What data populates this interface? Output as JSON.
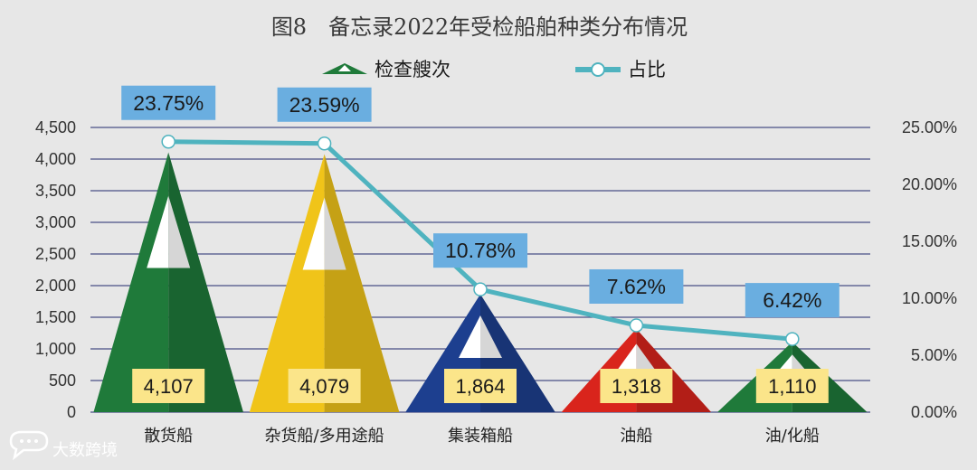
{
  "chart_data": {
    "type": "bar",
    "title": "图8　备忘录2022年受检船舶种类分布情况",
    "categories": [
      "散货船",
      "杂货船/多用途船",
      "集装箱船",
      "油船",
      "油/化船"
    ],
    "series": [
      {
        "name": "检查艘次",
        "axis": "left",
        "marker": "triangle",
        "values": [
          4107,
          4079,
          1864,
          1318,
          1110
        ],
        "labels": [
          "4,107",
          "4,079",
          "1,864",
          "1,318",
          "1,110"
        ]
      },
      {
        "name": "占比",
        "axis": "right",
        "type": "line",
        "values": [
          23.75,
          23.59,
          10.78,
          7.62,
          6.42
        ],
        "labels": [
          "23.75%",
          "23.59%",
          "10.78%",
          "7.62%",
          "6.42%"
        ]
      }
    ],
    "bar_colors": [
      "#1f7a3a",
      "#f0c419",
      "#1d3f8f",
      "#d9241c",
      "#1f7a3a"
    ],
    "line_color": "#4fb3bf",
    "label_box_pct_color": "#6aaee0",
    "label_box_val_color": "#fbe58a",
    "y_left": {
      "range": [
        0,
        4500
      ],
      "ticks": [
        "0",
        "500",
        "1,000",
        "1,500",
        "2,000",
        "2,500",
        "3,000",
        "3,500",
        "4,000",
        "4,500"
      ]
    },
    "y_right": {
      "range": [
        0,
        25
      ],
      "ticks": [
        "0.00%",
        "5.00%",
        "10.00%",
        "15.00%",
        "20.00%",
        "25.00%"
      ]
    },
    "grid": true,
    "legend_position": "top"
  },
  "watermark": {
    "text": "大数跨境",
    "icon": "chat-bubble-icon"
  }
}
